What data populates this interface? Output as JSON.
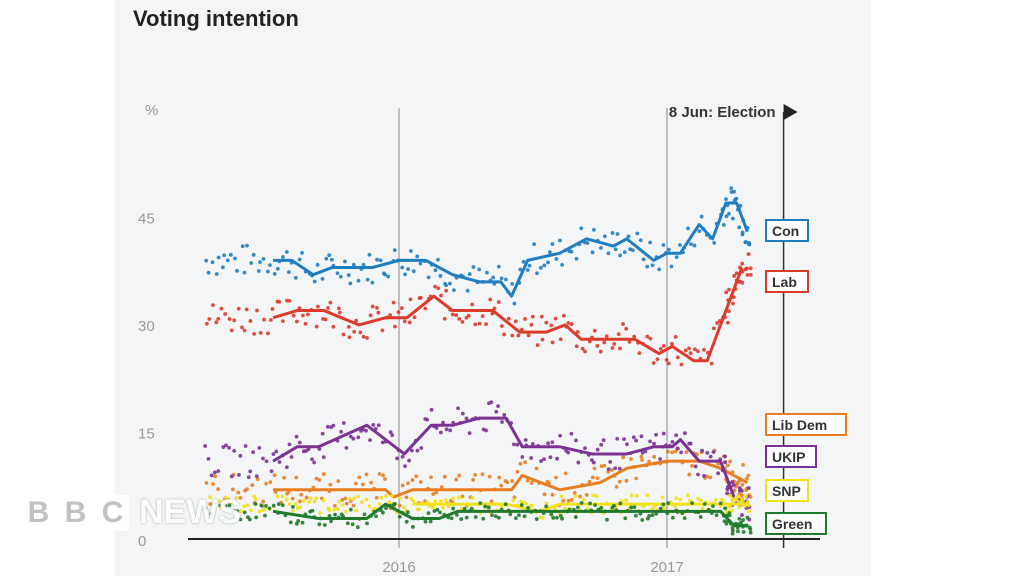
{
  "chart_data": {
    "type": "line",
    "title": "Voting intention",
    "ylabel": "%",
    "ylim": [
      0,
      50
    ],
    "yticks": [
      "0",
      "15",
      "30",
      "45"
    ],
    "xticks": [
      {
        "label": "2016",
        "x": 2016
      },
      {
        "label": "2017",
        "x": 2017
      }
    ],
    "xlim": [
      2015.2,
      2017.6
    ],
    "annotation": {
      "label": "8 Jun: Election",
      "x": 2017.435
    },
    "grid": false,
    "legend": "right",
    "series": [
      {
        "name": "Con",
        "color": "#1f7ec2",
        "points": [
          [
            2015.53,
            39
          ],
          [
            2015.6,
            39
          ],
          [
            2015.68,
            37
          ],
          [
            2015.75,
            38
          ],
          [
            2015.9,
            38
          ],
          [
            2016.0,
            39
          ],
          [
            2016.1,
            39
          ],
          [
            2016.2,
            37
          ],
          [
            2016.3,
            36
          ],
          [
            2016.38,
            36
          ],
          [
            2016.42,
            34
          ],
          [
            2016.48,
            39
          ],
          [
            2016.6,
            40
          ],
          [
            2016.7,
            42
          ],
          [
            2016.8,
            41
          ],
          [
            2016.85,
            42
          ],
          [
            2016.95,
            39
          ],
          [
            2017.0,
            40
          ],
          [
            2017.05,
            40
          ],
          [
            2017.12,
            44
          ],
          [
            2017.17,
            42
          ],
          [
            2017.22,
            47
          ],
          [
            2017.26,
            47
          ],
          [
            2017.3,
            43
          ]
        ]
      },
      {
        "name": "Lab",
        "color": "#dc3a2a",
        "points": [
          [
            2015.53,
            31
          ],
          [
            2015.62,
            32
          ],
          [
            2015.72,
            32
          ],
          [
            2015.85,
            30
          ],
          [
            2015.95,
            31
          ],
          [
            2016.03,
            31
          ],
          [
            2016.13,
            34
          ],
          [
            2016.2,
            32
          ],
          [
            2016.35,
            32
          ],
          [
            2016.45,
            29
          ],
          [
            2016.55,
            29
          ],
          [
            2016.62,
            30
          ],
          [
            2016.68,
            28
          ],
          [
            2016.88,
            28
          ],
          [
            2016.97,
            26
          ],
          [
            2017.02,
            27
          ],
          [
            2017.1,
            25
          ],
          [
            2017.15,
            25
          ],
          [
            2017.2,
            30
          ],
          [
            2017.25,
            35
          ],
          [
            2017.28,
            38
          ]
        ]
      },
      {
        "name": "Lib Dem",
        "color": "#e77e22",
        "points": [
          [
            2015.53,
            7
          ],
          [
            2015.95,
            7
          ],
          [
            2015.98,
            6
          ],
          [
            2016.05,
            7
          ],
          [
            2016.42,
            7
          ],
          [
            2016.46,
            9
          ],
          [
            2016.6,
            7
          ],
          [
            2016.75,
            8
          ],
          [
            2016.85,
            10
          ],
          [
            2017.0,
            11
          ],
          [
            2017.05,
            11
          ],
          [
            2017.12,
            11
          ],
          [
            2017.2,
            10
          ],
          [
            2017.3,
            8
          ]
        ]
      },
      {
        "name": "UKIP",
        "color": "#7b3294",
        "points": [
          [
            2015.53,
            11
          ],
          [
            2015.62,
            13
          ],
          [
            2015.7,
            13
          ],
          [
            2015.88,
            16
          ],
          [
            2016.02,
            12
          ],
          [
            2016.12,
            16
          ],
          [
            2016.2,
            16
          ],
          [
            2016.3,
            17
          ],
          [
            2016.4,
            17
          ],
          [
            2016.46,
            13
          ],
          [
            2016.6,
            13
          ],
          [
            2016.72,
            12
          ],
          [
            2016.85,
            12
          ],
          [
            2016.95,
            13
          ],
          [
            2017.02,
            13
          ],
          [
            2017.05,
            14
          ],
          [
            2017.12,
            11
          ],
          [
            2017.2,
            11
          ],
          [
            2017.25,
            6
          ],
          [
            2017.3,
            5
          ]
        ]
      },
      {
        "name": "SNP",
        "color": "#f2e11a",
        "points": [
          [
            2016.05,
            5
          ],
          [
            2016.4,
            5
          ],
          [
            2016.52,
            4
          ],
          [
            2016.6,
            5
          ],
          [
            2017.2,
            5
          ],
          [
            2017.3,
            5
          ]
        ]
      },
      {
        "name": "Green",
        "color": "#1f7a2b",
        "points": [
          [
            2015.53,
            4
          ],
          [
            2015.7,
            3
          ],
          [
            2015.88,
            3
          ],
          [
            2015.95,
            5
          ],
          [
            2016.05,
            3
          ],
          [
            2016.15,
            3
          ],
          [
            2016.22,
            4
          ],
          [
            2017.2,
            4
          ],
          [
            2017.25,
            2
          ],
          [
            2017.3,
            2
          ]
        ]
      }
    ]
  },
  "watermark": {
    "label": "BBC NEWS",
    "letters": [
      "B",
      "B",
      "C"
    ],
    "text": "NEWS"
  }
}
